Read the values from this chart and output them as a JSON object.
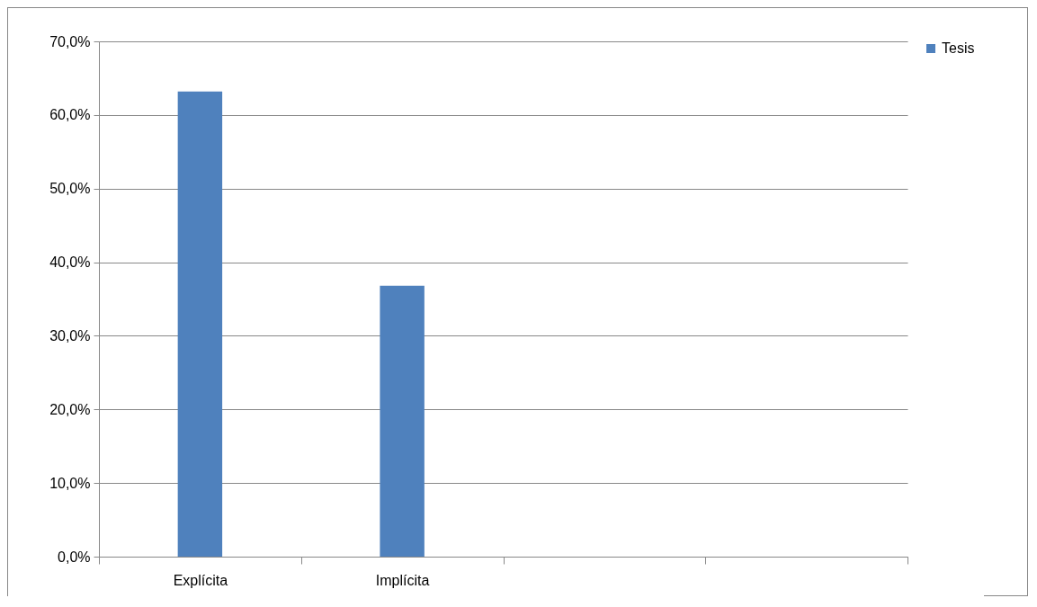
{
  "chart_data": {
    "type": "bar",
    "categories": [
      "Explícita",
      "Implícita",
      null,
      null
    ],
    "series": [
      {
        "name": "Tesis",
        "color": "#4f81bd",
        "values": [
          63.2,
          36.8,
          null,
          null
        ]
      }
    ],
    "ylim": [
      0,
      70
    ],
    "yticks": [
      {
        "value": 0,
        "label": "0,0%"
      },
      {
        "value": 10,
        "label": "10,0%"
      },
      {
        "value": 20,
        "label": "20,0%"
      },
      {
        "value": 30,
        "label": "30,0%"
      },
      {
        "value": 40,
        "label": "40,0%"
      },
      {
        "value": 50,
        "label": "50,0%"
      },
      {
        "value": 60,
        "label": "60,0%"
      },
      {
        "value": 70,
        "label": "70,0%"
      }
    ],
    "grid": "y",
    "legend": "right"
  }
}
